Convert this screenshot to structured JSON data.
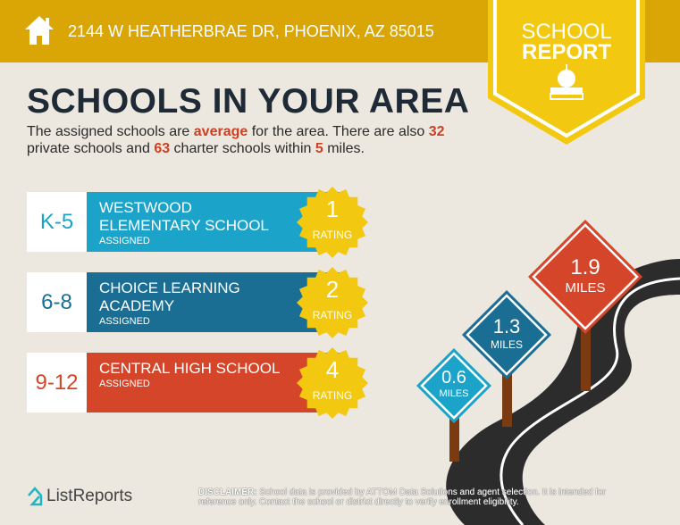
{
  "header": {
    "address": "2144 W HEATHERBRAE DR, PHOENIX, AZ 85015",
    "icon": "house-icon"
  },
  "badge": {
    "line1": "SCHOOL",
    "line2": "REPORT",
    "icon": "apple-on-book-icon"
  },
  "title": "SCHOOLS IN YOUR AREA",
  "intro": {
    "p1": "The assigned schools are ",
    "quality": "average",
    "p2": " for the area. There are also ",
    "private_count": "32",
    "p3": " private schools and ",
    "charter_count": "63",
    "p4": " charter schools within ",
    "radius": "5",
    "p5": " miles."
  },
  "schools": [
    {
      "grade": "K-5",
      "name": "WESTWOOD ELEMENTARY SCHOOL",
      "status": "ASSIGNED",
      "rating": "1",
      "rating_label": "RATING",
      "color": "#1ba3c9"
    },
    {
      "grade": "6-8",
      "name": "CHOICE LEARNING ACADEMY",
      "status": "ASSIGNED",
      "rating": "2",
      "rating_label": "RATING",
      "color": "#1a6d93"
    },
    {
      "grade": "9-12",
      "name": "CENTRAL HIGH SCHOOL",
      "status": "ASSIGNED",
      "rating": "4",
      "rating_label": "RATING",
      "color": "#d5452a"
    }
  ],
  "signs": [
    {
      "distance": "0.6",
      "unit": "MILES",
      "color": "#1ba3c9"
    },
    {
      "distance": "1.3",
      "unit": "MILES",
      "color": "#1a6d93"
    },
    {
      "distance": "1.9",
      "unit": "MILES",
      "color": "#d5452a"
    }
  ],
  "footer": {
    "logo": "ListReports",
    "disclaimer_label": "DISCLAIMER:",
    "disclaimer": " School data is provided by ATTOM Data Solutions and agent selection. It is intended for reference only. Contact the school or district directly to verify enrollment eligibility."
  },
  "colors": {
    "header": "#d9a606",
    "badge": "#f2c811",
    "star": "#f2c811",
    "title": "#1e2b36",
    "highlight": "#cf3f21"
  }
}
